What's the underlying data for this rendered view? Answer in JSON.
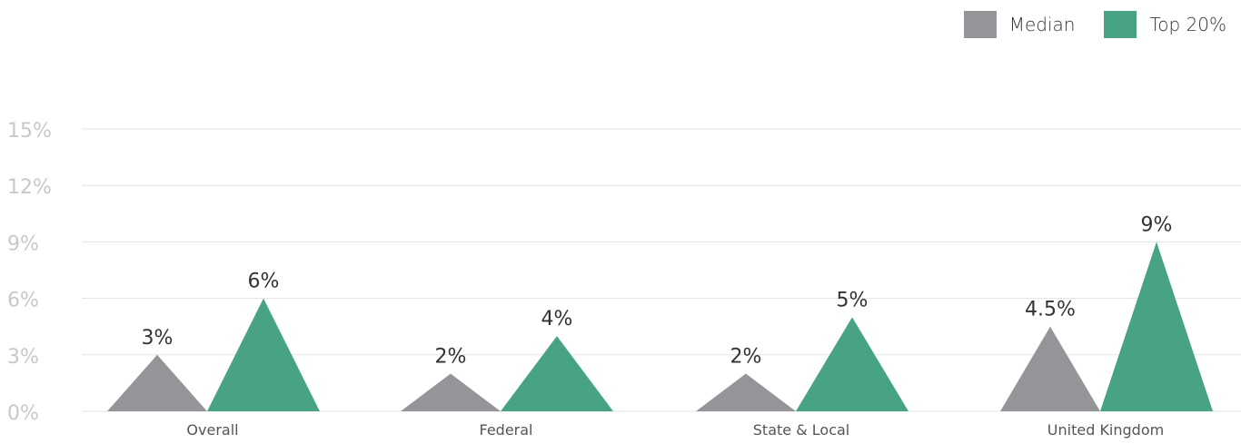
{
  "chart_data": {
    "type": "triangle-bar",
    "categories": [
      "Overall",
      "Federal",
      "State & Local",
      "United Kingdom"
    ],
    "series": [
      {
        "name": "Median",
        "values": [
          3,
          2,
          2,
          4.5
        ],
        "labels": [
          "3%",
          "2%",
          "2%",
          "4.5%"
        ],
        "color": "#939598"
      },
      {
        "name": "Top 20%",
        "values": [
          6,
          4,
          5,
          9
        ],
        "labels": [
          "6%",
          "4%",
          "5%",
          "9%"
        ],
        "color": "#48a383"
      }
    ],
    "y_ticks": [
      "0%",
      "3%",
      "6%",
      "9%",
      "12%",
      "15%"
    ],
    "ylim": [
      0,
      15
    ],
    "grid": true,
    "legend": "top-right"
  },
  "colors": {
    "grid": "#e3e3e3",
    "tick_text": "#c8c8c8",
    "category_text": "#555555",
    "value_text": "#333333"
  }
}
